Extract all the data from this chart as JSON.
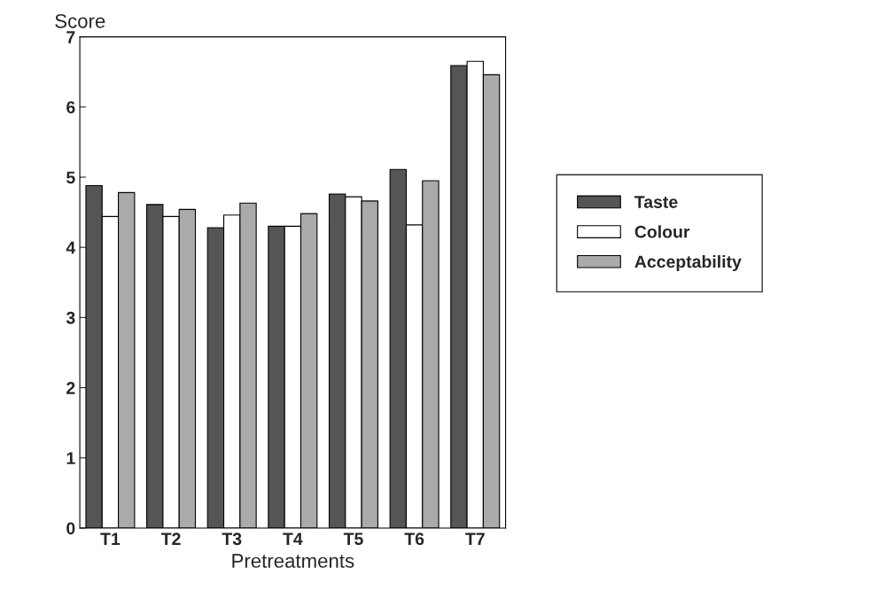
{
  "chart_data": {
    "type": "bar",
    "ylabel": "Score",
    "xlabel": "Pretreatments",
    "categories": [
      "T1",
      "T2",
      "T3",
      "T4",
      "T5",
      "T6",
      "T7"
    ],
    "series": [
      {
        "name": "Taste",
        "color": "#555555",
        "values": [
          4.88,
          4.61,
          4.28,
          4.3,
          4.76,
          5.11,
          6.59
        ]
      },
      {
        "name": "Colour",
        "color": "#ffffff",
        "values": [
          4.44,
          4.44,
          4.46,
          4.3,
          4.72,
          4.32,
          6.65
        ]
      },
      {
        "name": "Acceptability",
        "color": "#aaaaaa",
        "values": [
          4.78,
          4.54,
          4.63,
          4.48,
          4.66,
          4.95,
          6.46
        ]
      }
    ],
    "ylim": [
      0,
      7
    ],
    "yticks": [
      0,
      1,
      2,
      3,
      4,
      5,
      6,
      7
    ],
    "grid": false,
    "legend": "right"
  }
}
